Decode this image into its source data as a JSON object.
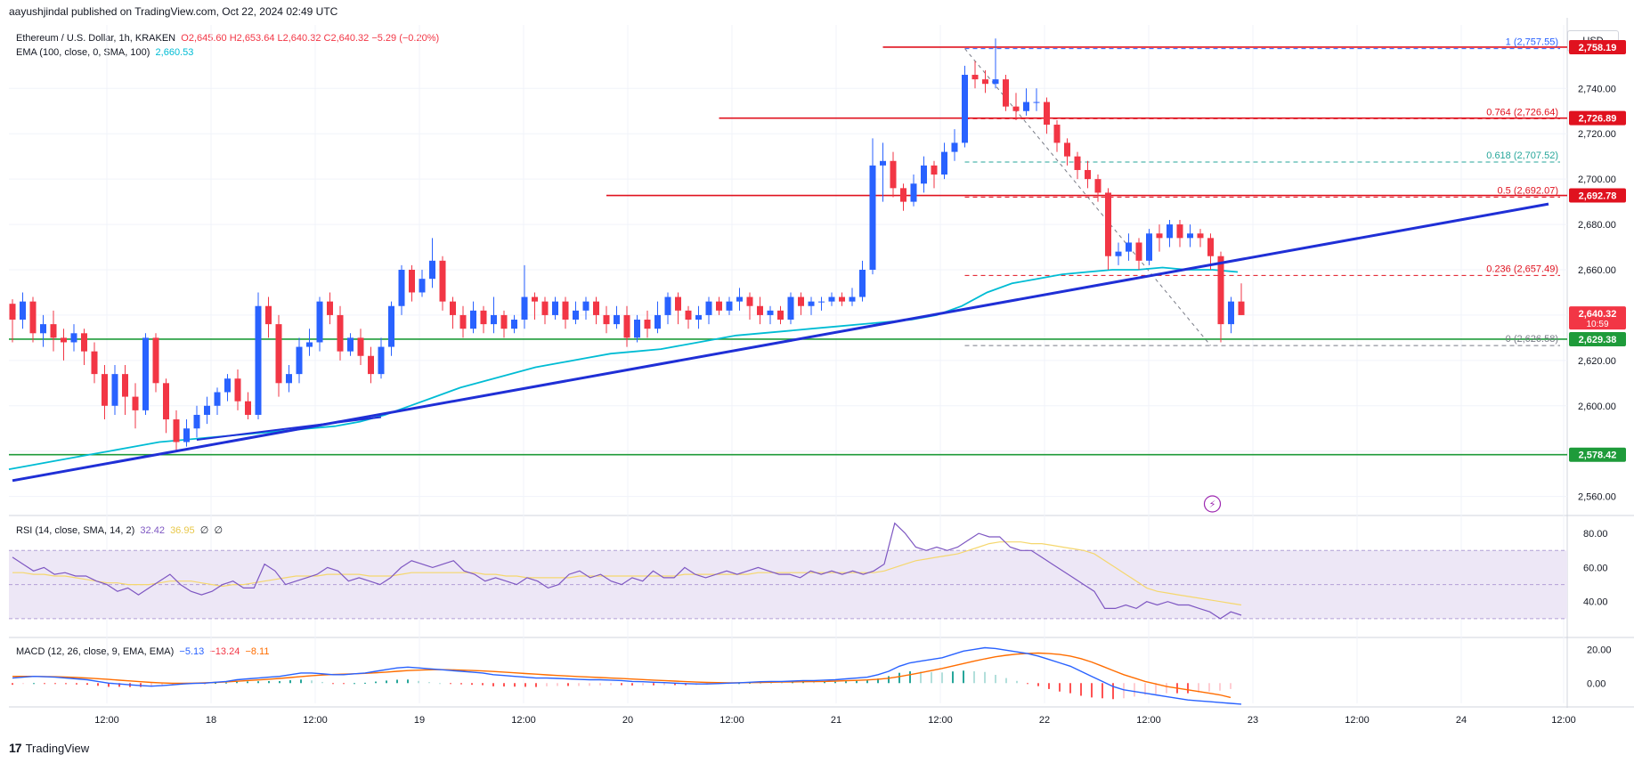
{
  "header": {
    "text": "aayushjindal published on TradingView.com, Oct 22, 2024 02:49 UTC"
  },
  "legend": {
    "symbol": "Ethereum / U.S. Dollar, 1h, KRAKEN",
    "ohlc": "O2,645.60 H2,653.64 L2,640.32 C2,640.32 −5.29 (−0.20%)",
    "ema_label": "EMA (100, close, 0, SMA, 100)",
    "ema_value": "2,660.53",
    "rsi_label": "RSI (14, close, SMA, 14, 2)",
    "rsi_value": "32.42",
    "rsi_sma": "36.95",
    "rsi_extra1": "∅",
    "rsi_extra2": "∅",
    "macd_label": "MACD (12, 26, close, 9, EMA, EMA)",
    "macd_value": "−5.13",
    "macd_signal": "−13.24",
    "macd_hist": "−8.11"
  },
  "currency_button": "USD",
  "brand": {
    "logo": "17",
    "name": "TradingView"
  },
  "colors": {
    "up": "#2962ff",
    "down": "#f23645",
    "ema": "#00bcd4",
    "trendline": "#1f2fd6",
    "resistance": "#e0121f",
    "support": "#1e9b3a",
    "rsi_band": "#ede7f6",
    "rsi_line": "#7e57c2",
    "rsi_sma": "#f5d76e",
    "macd": "#2962ff",
    "macd_signal": "#ff6d00"
  },
  "chart_data": {
    "type": "candlestick",
    "ylim": [
      2552,
      2768
    ],
    "x_ticks": [
      "12:00",
      "18",
      "12:00",
      "19",
      "12:00",
      "20",
      "12:00",
      "21",
      "12:00",
      "22",
      "12:00",
      "23",
      "12:00",
      "24",
      "12:00"
    ],
    "y_ticks": [
      "2,740.00",
      "2,720.00",
      "2,700.00",
      "2,680.00",
      "2,660.00",
      "2,640.00",
      "2,620.00",
      "2,600.00",
      "2,580.00",
      "2,560.00"
    ],
    "candles": [
      [
        2645,
        2638,
        2647,
        2628
      ],
      [
        2638,
        2646,
        2650,
        2634
      ],
      [
        2646,
        2632,
        2648,
        2628
      ],
      [
        2632,
        2636,
        2640,
        2626
      ],
      [
        2636,
        2630,
        2642,
        2624
      ],
      [
        2630,
        2628,
        2634,
        2620
      ],
      [
        2628,
        2632,
        2636,
        2624
      ],
      [
        2632,
        2624,
        2634,
        2618
      ],
      [
        2624,
        2614,
        2628,
        2610
      ],
      [
        2614,
        2600,
        2618,
        2594
      ],
      [
        2600,
        2614,
        2618,
        2596
      ],
      [
        2614,
        2604,
        2618,
        2596
      ],
      [
        2604,
        2598,
        2610,
        2590
      ],
      [
        2598,
        2630,
        2632,
        2596
      ],
      [
        2630,
        2610,
        2632,
        2606
      ],
      [
        2610,
        2594,
        2612,
        2588
      ],
      [
        2594,
        2584,
        2598,
        2580
      ],
      [
        2584,
        2590,
        2594,
        2582
      ],
      [
        2590,
        2596,
        2600,
        2586
      ],
      [
        2596,
        2600,
        2604,
        2592
      ],
      [
        2600,
        2606,
        2608,
        2596
      ],
      [
        2606,
        2612,
        2614,
        2602
      ],
      [
        2612,
        2602,
        2616,
        2598
      ],
      [
        2602,
        2596,
        2606,
        2594
      ],
      [
        2596,
        2644,
        2650,
        2594
      ],
      [
        2644,
        2636,
        2648,
        2630
      ],
      [
        2636,
        2610,
        2640,
        2604
      ],
      [
        2610,
        2614,
        2618,
        2606
      ],
      [
        2614,
        2626,
        2630,
        2610
      ],
      [
        2626,
        2628,
        2634,
        2622
      ],
      [
        2628,
        2646,
        2648,
        2624
      ],
      [
        2646,
        2640,
        2650,
        2636
      ],
      [
        2640,
        2624,
        2644,
        2620
      ],
      [
        2624,
        2630,
        2632,
        2622
      ],
      [
        2630,
        2622,
        2634,
        2618
      ],
      [
        2622,
        2614,
        2626,
        2610
      ],
      [
        2614,
        2626,
        2630,
        2612
      ],
      [
        2626,
        2644,
        2646,
        2622
      ],
      [
        2644,
        2660,
        2662,
        2640
      ],
      [
        2660,
        2650,
        2662,
        2646
      ],
      [
        2650,
        2656,
        2660,
        2648
      ],
      [
        2656,
        2664,
        2674,
        2652
      ],
      [
        2664,
        2646,
        2666,
        2642
      ],
      [
        2646,
        2640,
        2648,
        2634
      ],
      [
        2640,
        2634,
        2644,
        2630
      ],
      [
        2634,
        2642,
        2646,
        2632
      ],
      [
        2642,
        2636,
        2644,
        2632
      ],
      [
        2636,
        2640,
        2648,
        2632
      ],
      [
        2640,
        2634,
        2642,
        2630
      ],
      [
        2634,
        2638,
        2640,
        2632
      ],
      [
        2638,
        2648,
        2662,
        2634
      ],
      [
        2648,
        2646,
        2650,
        2638
      ],
      [
        2646,
        2640,
        2648,
        2636
      ],
      [
        2640,
        2646,
        2648,
        2638
      ],
      [
        2646,
        2638,
        2648,
        2634
      ],
      [
        2638,
        2642,
        2646,
        2636
      ],
      [
        2642,
        2646,
        2648,
        2638
      ],
      [
        2646,
        2640,
        2648,
        2636
      ],
      [
        2640,
        2636,
        2644,
        2632
      ],
      [
        2636,
        2640,
        2644,
        2634
      ],
      [
        2640,
        2630,
        2644,
        2626
      ],
      [
        2630,
        2638,
        2640,
        2628
      ],
      [
        2638,
        2634,
        2642,
        2630
      ],
      [
        2634,
        2640,
        2646,
        2632
      ],
      [
        2640,
        2648,
        2650,
        2636
      ],
      [
        2648,
        2642,
        2650,
        2636
      ],
      [
        2642,
        2638,
        2644,
        2634
      ],
      [
        2638,
        2640,
        2644,
        2634
      ],
      [
        2640,
        2646,
        2648,
        2636
      ],
      [
        2646,
        2642,
        2648,
        2640
      ],
      [
        2642,
        2646,
        2648,
        2640
      ],
      [
        2646,
        2648,
        2652,
        2642
      ],
      [
        2648,
        2644,
        2650,
        2638
      ],
      [
        2644,
        2640,
        2648,
        2636
      ],
      [
        2640,
        2642,
        2644,
        2636
      ],
      [
        2642,
        2638,
        2644,
        2636
      ],
      [
        2638,
        2648,
        2650,
        2636
      ],
      [
        2648,
        2644,
        2650,
        2640
      ],
      [
        2644,
        2646,
        2648,
        2640
      ],
      [
        2646,
        2646,
        2648,
        2642
      ],
      [
        2646,
        2648,
        2650,
        2644
      ],
      [
        2648,
        2646,
        2650,
        2644
      ],
      [
        2646,
        2648,
        2652,
        2644
      ],
      [
        2648,
        2660,
        2664,
        2646
      ],
      [
        2660,
        2706,
        2718,
        2658
      ],
      [
        2706,
        2708,
        2716,
        2690
      ],
      [
        2708,
        2696,
        2712,
        2692
      ],
      [
        2696,
        2690,
        2698,
        2686
      ],
      [
        2690,
        2698,
        2702,
        2688
      ],
      [
        2698,
        2706,
        2710,
        2694
      ],
      [
        2706,
        2702,
        2708,
        2696
      ],
      [
        2702,
        2712,
        2716,
        2700
      ],
      [
        2712,
        2716,
        2722,
        2708
      ],
      [
        2716,
        2746,
        2750,
        2714
      ],
      [
        2746,
        2744,
        2752,
        2740
      ],
      [
        2744,
        2742,
        2748,
        2738
      ],
      [
        2742,
        2744,
        2762,
        2740
      ],
      [
        2744,
        2732,
        2746,
        2730
      ],
      [
        2732,
        2730,
        2738,
        2726
      ],
      [
        2730,
        2734,
        2740,
        2728
      ],
      [
        2734,
        2734,
        2740,
        2730
      ],
      [
        2734,
        2724,
        2736,
        2720
      ],
      [
        2724,
        2716,
        2726,
        2712
      ],
      [
        2716,
        2710,
        2718,
        2706
      ],
      [
        2710,
        2704,
        2712,
        2700
      ],
      [
        2704,
        2700,
        2708,
        2696
      ],
      [
        2700,
        2694,
        2702,
        2690
      ],
      [
        2694,
        2666,
        2696,
        2660
      ],
      [
        2666,
        2668,
        2672,
        2662
      ],
      [
        2668,
        2672,
        2676,
        2664
      ],
      [
        2672,
        2664,
        2674,
        2660
      ],
      [
        2664,
        2676,
        2678,
        2662
      ],
      [
        2676,
        2674,
        2680,
        2668
      ],
      [
        2674,
        2680,
        2682,
        2670
      ],
      [
        2680,
        2674,
        2682,
        2670
      ],
      [
        2674,
        2676,
        2680,
        2670
      ],
      [
        2676,
        2674,
        2678,
        2670
      ],
      [
        2674,
        2666,
        2676,
        2660
      ],
      [
        2666,
        2636,
        2668,
        2628
      ],
      [
        2636,
        2646,
        2648,
        2632
      ],
      [
        2646,
        2640,
        2654,
        2640
      ]
    ],
    "ema_series": [
      2572,
      2574,
      2576,
      2578,
      2580,
      2582,
      2584,
      2585,
      2586,
      2587,
      2588,
      2589,
      2590,
      2591,
      2593,
      2596,
      2600,
      2604,
      2608,
      2611,
      2614,
      2617,
      2619,
      2621,
      2623,
      2624,
      2625,
      2627,
      2629,
      2631,
      2632,
      2633,
      2634,
      2635,
      2636,
      2637,
      2638,
      2640,
      2644,
      2650,
      2654,
      2656,
      2658,
      2659,
      2660,
      2660,
      2661,
      2660,
      2660,
      2659
    ],
    "trendline": {
      "x0": 0,
      "y0": 2567,
      "x1": 150,
      "y1": 2689
    },
    "ma_short": {
      "x0": 18,
      "y0": 2585,
      "x1": 36,
      "y1": 2595
    },
    "resistance_levels": [
      {
        "label": "2,758.19",
        "value": 2758.19,
        "start": 85
      },
      {
        "label": "2,726.89",
        "value": 2726.89,
        "start": 69
      },
      {
        "label": "2,692.78",
        "value": 2692.78,
        "start": 58
      }
    ],
    "support_levels": [
      {
        "label": "2,629.38",
        "value": 2629.38
      },
      {
        "label": "2,578.42",
        "value": 2578.42
      }
    ],
    "current_price": {
      "label": "2,640.32",
      "value": 2640.32,
      "countdown": "10:59"
    },
    "fib": [
      {
        "ratio": "1",
        "label": "1 (2,757.55)",
        "value": 2757.55,
        "color": "#2962ff"
      },
      {
        "ratio": "0.764",
        "label": "0.764 (2,726.64)",
        "value": 2726.64,
        "color": "#e0121f"
      },
      {
        "ratio": "0.618",
        "label": "0.618 (2,707.52)",
        "value": 2707.52,
        "color": "#26a69a"
      },
      {
        "ratio": "0.5",
        "label": "0.5 (2,692.07)",
        "value": 2692.07,
        "color": "#e0121f"
      },
      {
        "ratio": "0.236",
        "label": "0.236 (2,657.49)",
        "value": 2657.49,
        "color": "#e0121f"
      },
      {
        "ratio": "0",
        "label": "0 (2,626.58)",
        "value": 2626.58,
        "color": "#787b86"
      }
    ],
    "rsi": {
      "ylim": [
        20,
        90
      ],
      "band": [
        30,
        70
      ],
      "y_ticks": [
        "80.00",
        "60.00",
        "40.00"
      ],
      "values": [
        66,
        62,
        58,
        60,
        56,
        57,
        55,
        55,
        52,
        50,
        46,
        48,
        44,
        48,
        52,
        56,
        50,
        46,
        44,
        46,
        50,
        52,
        48,
        48,
        62,
        58,
        50,
        52,
        54,
        56,
        60,
        58,
        52,
        54,
        52,
        50,
        54,
        60,
        64,
        62,
        60,
        62,
        64,
        58,
        56,
        52,
        54,
        52,
        50,
        54,
        52,
        48,
        50,
        56,
        58,
        54,
        56,
        52,
        50,
        54,
        52,
        58,
        54,
        54,
        60,
        56,
        54,
        56,
        58,
        56,
        58,
        60,
        58,
        56,
        56,
        54,
        58,
        56,
        58,
        56,
        58,
        56,
        58,
        62,
        86,
        80,
        72,
        70,
        72,
        70,
        72,
        76,
        80,
        78,
        78,
        72,
        70,
        70,
        66,
        62,
        58,
        54,
        50,
        46,
        36,
        36,
        38,
        36,
        40,
        38,
        40,
        38,
        38,
        36,
        34,
        30,
        34,
        32
      ],
      "sma": [
        57,
        57,
        56,
        56,
        55,
        55,
        54,
        53,
        52,
        51,
        51,
        50,
        50,
        50,
        51,
        52,
        52,
        52,
        51,
        50,
        49,
        50,
        50,
        51,
        52,
        53,
        54,
        55,
        55,
        55,
        56,
        56,
        56,
        56,
        55,
        55,
        55,
        56,
        57,
        57,
        57,
        57,
        57,
        57,
        57,
        56,
        56,
        55,
        55,
        54,
        54,
        54,
        54,
        54,
        55,
        55,
        55,
        55,
        55,
        55,
        55,
        55,
        55,
        55,
        56,
        56,
        56,
        56,
        56,
        56,
        56,
        57,
        57,
        57,
        57,
        57,
        57,
        57,
        57,
        57,
        57,
        57,
        57,
        58,
        60,
        62,
        64,
        65,
        66,
        67,
        68,
        70,
        72,
        74,
        75,
        75,
        75,
        74,
        74,
        73,
        72,
        71,
        70,
        68,
        64,
        60,
        56,
        52,
        48,
        46,
        45,
        44,
        43,
        42,
        41,
        40,
        39,
        38
      ]
    },
    "macd": {
      "ylim": [
        -12,
        26
      ],
      "y_ticks": [
        "20.00",
        "0.00"
      ],
      "macd": [
        3,
        3.5,
        4,
        3.8,
        3.5,
        3,
        2.5,
        2,
        1,
        0,
        -0.5,
        -1,
        -1.5,
        -1.8,
        -1.5,
        -1,
        -0.5,
        -0.2,
        0,
        0.5,
        1,
        2,
        2.5,
        3,
        3.5,
        4,
        5,
        6,
        6,
        5.5,
        5,
        5,
        5.5,
        6,
        7,
        8,
        9,
        9.5,
        9,
        8.5,
        8,
        7.5,
        7,
        6.5,
        6,
        5,
        4.5,
        4,
        3.5,
        3,
        3,
        2.8,
        2.5,
        2.2,
        2,
        2,
        1.8,
        1.5,
        1,
        0.8,
        0.5,
        0.3,
        0,
        -0.3,
        -0.5,
        -0.5,
        -0.3,
        0,
        0.2,
        0.5,
        0.8,
        1,
        1,
        1.2,
        1.5,
        1.5,
        1.8,
        2,
        2.5,
        3,
        3.5,
        5,
        7,
        10,
        12,
        13,
        14,
        15,
        17,
        19,
        20,
        21,
        20.5,
        19.5,
        18.5,
        17.5,
        16,
        14,
        12,
        10,
        7,
        4,
        1,
        -2,
        -4,
        -5,
        -6,
        -7,
        -8,
        -9,
        -10,
        -10.5,
        -11,
        -11.5,
        -12,
        -12.5
      ],
      "signal": [
        4,
        4,
        4,
        3.9,
        3.8,
        3.6,
        3.3,
        3,
        2.6,
        2.2,
        1.7,
        1.3,
        0.8,
        0.4,
        0.1,
        -0.1,
        -0.1,
        0,
        0.2,
        0.4,
        0.7,
        1.1,
        1.5,
        1.9,
        2.3,
        2.8,
        3.3,
        3.9,
        4.4,
        4.8,
        5.1,
        5.3,
        5.5,
        5.8,
        6.1,
        6.5,
        7,
        7.4,
        7.7,
        7.9,
        8,
        7.9,
        7.7,
        7.5,
        7.2,
        6.9,
        6.5,
        6.1,
        5.7,
        5.3,
        4.9,
        4.5,
        4.2,
        3.9,
        3.6,
        3.3,
        3,
        2.7,
        2.4,
        2.1,
        1.8,
        1.5,
        1.2,
        0.9,
        0.6,
        0.4,
        0.3,
        0.2,
        0.2,
        0.3,
        0.4,
        0.5,
        0.6,
        0.7,
        0.8,
        0.9,
        1,
        1.2,
        1.4,
        1.6,
        1.9,
        2.3,
        2.9,
        3.9,
        5,
        6.2,
        7.4,
        8.7,
        10.1,
        11.6,
        13,
        14.4,
        15.6,
        16.5,
        17.2,
        17.6,
        17.8,
        17.5,
        17,
        16,
        14.5,
        12.5,
        10,
        7.5,
        5,
        3,
        1,
        -0.5,
        -2,
        -3,
        -4,
        -5,
        -6,
        -7,
        -8.5
      ],
      "hist_note": "hist = macd - signal"
    }
  }
}
